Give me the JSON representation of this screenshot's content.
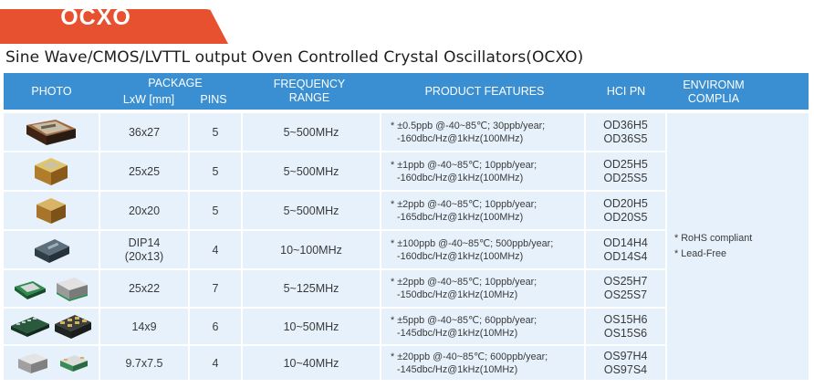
{
  "tab_title": "OCXO",
  "subtitle": "Sine Wave/CMOS/LVTTL output Oven Controlled Crystal Oscillators(OCXO)",
  "headers": {
    "photo": "PHOTO",
    "package": "PACKAGE",
    "lxw": "LxW [mm]",
    "pins": "PINS",
    "frequency_1": "FREQUENCY",
    "frequency_2": "RANGE",
    "features": "PRODUCT FEATURES",
    "hci_pn": "HCI PN",
    "env_1": "ENVIRONM",
    "env_2": "COMPLIA"
  },
  "rows": [
    {
      "size": "36x27",
      "pins": "5",
      "freq": "5~500MHz",
      "f1": "* ±0.5ppb @-40~85℃;  30ppb/year;",
      "f2": "-160dbc/Hz@1kHz(100MHz)",
      "pn1": "OD36H5",
      "pn2": "OD36S5",
      "icon": "large-ocxo-icon"
    },
    {
      "size": "25x25",
      "pins": "5",
      "freq": "5~500MHz",
      "f1": "* ±1ppb @-40~85℃;  10ppb/year;",
      "f2": "-160dbc/Hz@1kHz(100MHz)",
      "pn1": "OD25H5",
      "pn2": "OD25S5",
      "icon": "gold-ocxo-icon"
    },
    {
      "size": "20x20",
      "pins": "5",
      "freq": "5~500MHz",
      "f1": "* ±2ppb @-40~85℃;  10ppb/year;",
      "f2": "-165dbc/Hz@1kHz(100MHz)",
      "pn1": "OD20H5",
      "pn2": "OD20S5",
      "icon": "gold-cube-icon"
    },
    {
      "size_1": "DIP14",
      "size_2": "(20x13)",
      "pins": "4",
      "freq": "10~100MHz",
      "f1": "* ±100ppb @-40~85℃;  500ppb/year;",
      "f2": "-160dbc/Hz@1kHz(100MHz)",
      "pn1": "OD14H4",
      "pn2": "OD14S4",
      "icon": "dip14-oscillator-icon"
    },
    {
      "size": "25x22",
      "pins": "7",
      "freq": "5~125MHz",
      "f1": "* ±2ppb @-40~85℃;  10ppb/year;",
      "f2": "-150dbc/Hz@1kHz(10MHz)",
      "pn1": "OS25H7",
      "pn2": "OS25S7",
      "icon": "smd-module-icon"
    },
    {
      "size": "14x9",
      "pins": "6",
      "freq": "10~50MHz",
      "f1": "* ±5ppb @-40~85℃;  60ppb/year;",
      "f2": "-145dbc/Hz@1kHz(10MHz)",
      "pn1": "OS15H6",
      "pn2": "OS15S6",
      "icon": "smd-chip-icon"
    },
    {
      "size": "9.7x7.5",
      "pins": "4",
      "freq": "10~40MHz",
      "f1": "* ±20ppb @-40~85℃;  600ppb/year;",
      "f2": "-145dbc/Hz@1kHz(10MHz)",
      "pn1": "OS97H4",
      "pn2": "OS97S4",
      "icon": "small-smd-icon"
    }
  ],
  "environment": [
    "* RoHS compliant",
    "* Lead-Free"
  ],
  "colors": {
    "tab": "#e8512f",
    "header": "#3a8fd2",
    "cell": "#e7f1fb"
  }
}
